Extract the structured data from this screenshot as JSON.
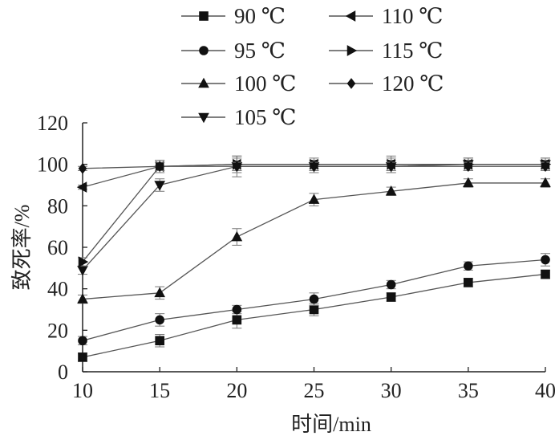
{
  "chart_data": {
    "type": "line",
    "x": [
      10,
      15,
      20,
      25,
      30,
      35,
      40
    ],
    "xlabel": "时间/min",
    "ylabel": "致死率/%",
    "xlim": [
      10,
      40
    ],
    "ylim": [
      0,
      120
    ],
    "xticks": [
      "10",
      "15",
      "20",
      "25",
      "30",
      "35",
      "40"
    ],
    "yticks": [
      "0",
      "20",
      "40",
      "60",
      "80",
      "100",
      "120"
    ],
    "grid": false,
    "legend_position": "top",
    "series": [
      {
        "name": "90 ℃",
        "marker": "square",
        "values": [
          7,
          15,
          25,
          30,
          36,
          43,
          47
        ],
        "errors": [
          2,
          3,
          4,
          3,
          2,
          2,
          2
        ]
      },
      {
        "name": "95 ℃",
        "marker": "circle",
        "values": [
          15,
          25,
          30,
          35,
          42,
          51,
          54
        ],
        "errors": [
          2,
          3,
          2,
          3,
          2,
          2,
          3
        ]
      },
      {
        "name": "100 ℃",
        "marker": "triangle-up",
        "values": [
          35,
          38,
          65,
          83,
          87,
          91,
          91
        ],
        "errors": [
          2,
          3,
          4,
          3,
          2,
          2,
          2
        ]
      },
      {
        "name": "105 ℃",
        "marker": "triangle-down",
        "values": [
          49,
          90,
          99,
          99,
          99,
          100,
          100
        ],
        "errors": [
          2,
          3,
          5,
          3,
          3,
          3,
          3
        ]
      },
      {
        "name": "110 ℃",
        "marker": "triangle-left",
        "values": [
          89,
          99,
          100,
          100,
          100,
          100,
          100
        ],
        "errors": [
          1,
          2,
          4,
          2,
          4,
          3,
          2
        ]
      },
      {
        "name": "115 ℃",
        "marker": "triangle-right",
        "values": [
          53,
          99,
          100,
          100,
          100,
          100,
          100
        ],
        "errors": [
          2,
          3,
          3,
          3,
          3,
          3,
          3
        ]
      },
      {
        "name": "120 ℃",
        "marker": "diamond",
        "values": [
          98,
          99,
          99,
          99,
          99,
          99,
          99
        ],
        "errors": [
          1,
          2,
          2,
          2,
          2,
          2,
          2
        ]
      }
    ]
  }
}
